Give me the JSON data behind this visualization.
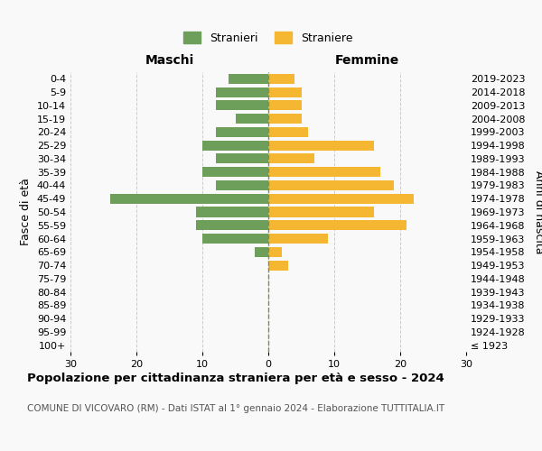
{
  "age_groups": [
    "100+",
    "95-99",
    "90-94",
    "85-89",
    "80-84",
    "75-79",
    "70-74",
    "65-69",
    "60-64",
    "55-59",
    "50-54",
    "45-49",
    "40-44",
    "35-39",
    "30-34",
    "25-29",
    "20-24",
    "15-19",
    "10-14",
    "5-9",
    "0-4"
  ],
  "birth_years": [
    "≤ 1923",
    "1924-1928",
    "1929-1933",
    "1934-1938",
    "1939-1943",
    "1944-1948",
    "1949-1953",
    "1954-1958",
    "1959-1963",
    "1964-1968",
    "1969-1973",
    "1974-1978",
    "1979-1983",
    "1984-1988",
    "1989-1993",
    "1994-1998",
    "1999-2003",
    "2004-2008",
    "2009-2013",
    "2014-2018",
    "2019-2023"
  ],
  "males": [
    0,
    0,
    0,
    0,
    0,
    0,
    0,
    2,
    10,
    11,
    11,
    24,
    8,
    10,
    8,
    10,
    8,
    5,
    8,
    8,
    6
  ],
  "females": [
    0,
    0,
    0,
    0,
    0,
    0,
    3,
    2,
    9,
    21,
    16,
    22,
    19,
    17,
    7,
    16,
    6,
    5,
    5,
    5,
    4
  ],
  "male_color": "#6d9e5a",
  "female_color": "#f5b731",
  "background_color": "#f9f9f9",
  "grid_color": "#cccccc",
  "center_line_color": "#888855",
  "xlim": 30,
  "title": "Popolazione per cittadinanza straniera per età e sesso - 2024",
  "subtitle": "COMUNE DI VICOVARO (RM) - Dati ISTAT al 1° gennaio 2024 - Elaborazione TUTTITALIA.IT",
  "xlabel_left": "Maschi",
  "xlabel_right": "Femmine",
  "ylabel_left": "Fasce di età",
  "ylabel_right": "Anni di nascita",
  "legend_male": "Stranieri",
  "legend_female": "Straniere",
  "xticks": [
    -30,
    -20,
    -10,
    0,
    10,
    20,
    30
  ]
}
